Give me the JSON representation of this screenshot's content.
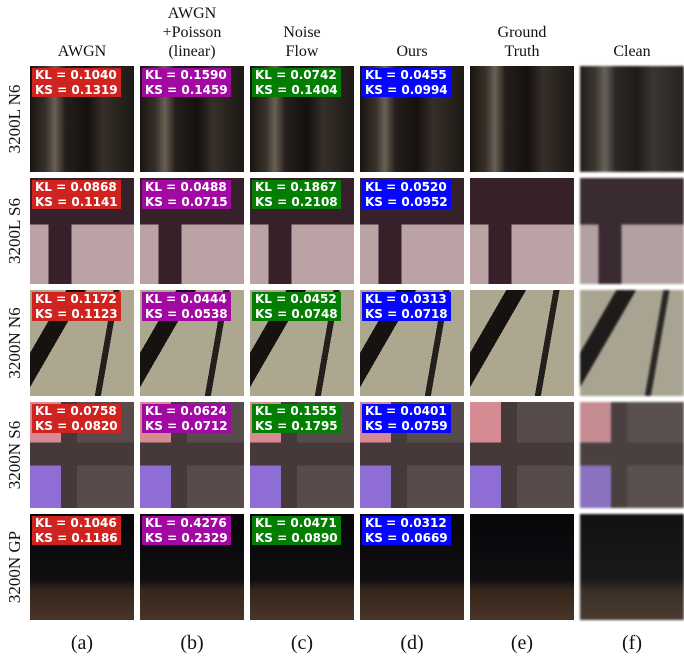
{
  "figure": {
    "columns": [
      {
        "header": [
          "AWGN"
        ],
        "letter": "(a)",
        "color": "#b3312f"
      },
      {
        "header": [
          "AWGN",
          "+Poisson",
          "(linear)"
        ],
        "letter": "(b)",
        "color": "#8e1a8e"
      },
      {
        "header": [
          "Noise",
          "Flow"
        ],
        "letter": "(c)",
        "color": "#1b7a1b"
      },
      {
        "header": [
          "Ours"
        ],
        "letter": "(d)",
        "color": "#1414e6"
      },
      {
        "header": [
          "Ground",
          "Truth"
        ],
        "letter": "(e)"
      },
      {
        "header": [
          "Clean"
        ],
        "letter": "(f)"
      }
    ],
    "rows": [
      {
        "label": "3200L N6",
        "cells": [
          {
            "kl": "KL = 0.1040",
            "ks": "KS = 0.1319"
          },
          {
            "kl": "KL = 0.1590",
            "ks": "KS = 0.1459"
          },
          {
            "kl": "KL = 0.0742",
            "ks": "KS = 0.1404"
          },
          {
            "kl": "KL = 0.0455",
            "ks": "KS = 0.0994"
          }
        ]
      },
      {
        "label": "3200L S6",
        "cells": [
          {
            "kl": "KL = 0.0868",
            "ks": "KS = 0.1141"
          },
          {
            "kl": "KL = 0.0488",
            "ks": "KS = 0.0715"
          },
          {
            "kl": "KL = 0.1867",
            "ks": "KS = 0.2108"
          },
          {
            "kl": "KL = 0.0520",
            "ks": "KS = 0.0952"
          }
        ]
      },
      {
        "label": "3200N N6",
        "cells": [
          {
            "kl": "KL = 0.1172",
            "ks": "KS = 0.1123"
          },
          {
            "kl": "KL = 0.0444",
            "ks": "KS = 0.0538"
          },
          {
            "kl": "KL = 0.0452",
            "ks": "KS = 0.0748"
          },
          {
            "kl": "KL = 0.0313",
            "ks": "KS = 0.0718"
          }
        ]
      },
      {
        "label": "3200N S6",
        "cells": [
          {
            "kl": "KL = 0.0758",
            "ks": "KS = 0.0820"
          },
          {
            "kl": "KL = 0.0624",
            "ks": "KS = 0.0712"
          },
          {
            "kl": "KL = 0.1555",
            "ks": "KS = 0.1795"
          },
          {
            "kl": "KL = 0.0401",
            "ks": "KS = 0.0759"
          }
        ]
      },
      {
        "label": "3200N GP",
        "cells": [
          {
            "kl": "KL = 0.1046",
            "ks": "KS = 0.1186"
          },
          {
            "kl": "KL = 0.4276",
            "ks": "KS = 0.2329"
          },
          {
            "kl": "KL = 0.0471",
            "ks": "KS = 0.0890"
          },
          {
            "kl": "KL = 0.0312",
            "ks": "KS = 0.0669"
          }
        ]
      }
    ]
  }
}
